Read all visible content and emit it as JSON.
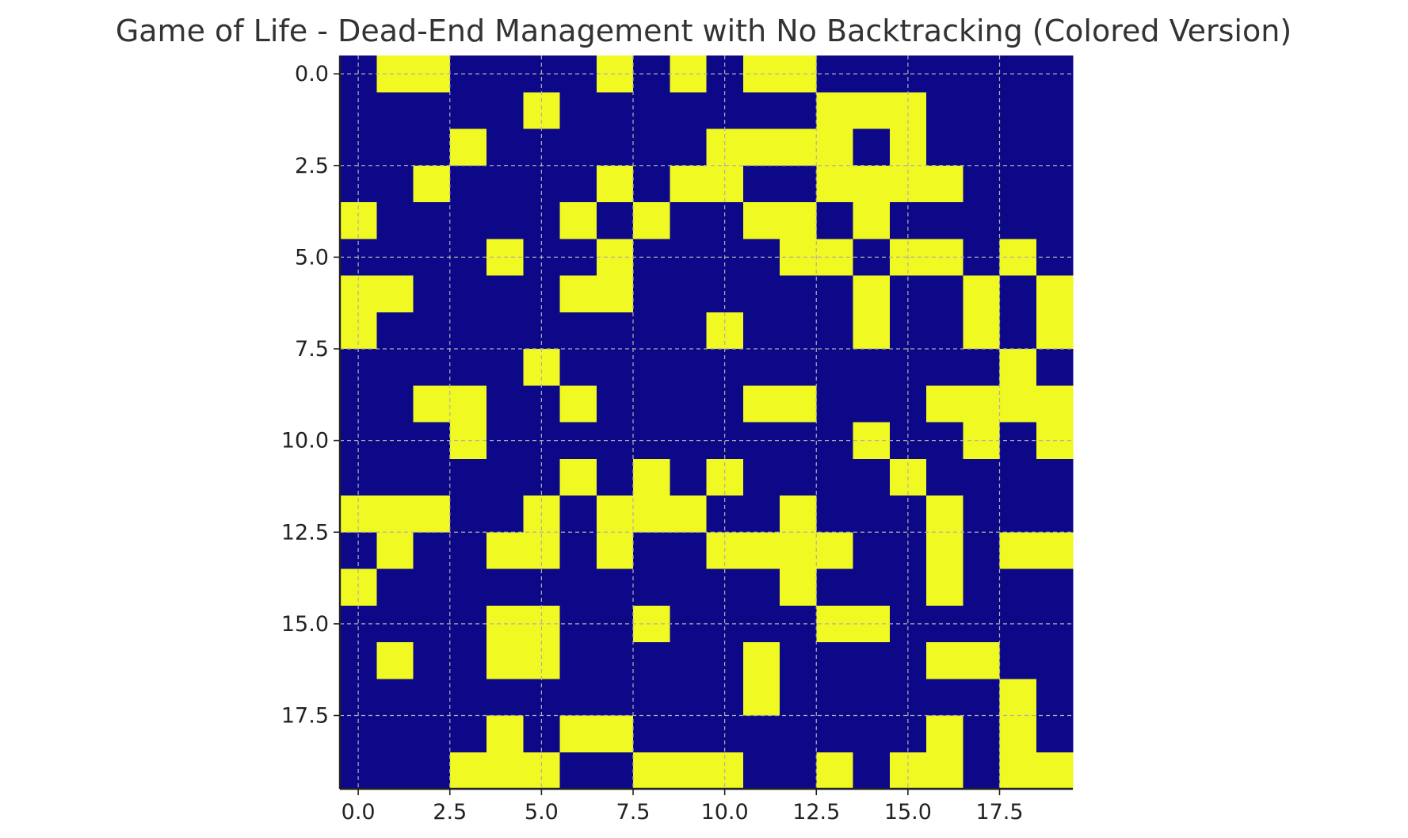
{
  "chart_data": {
    "type": "heatmap",
    "title": "Game of Life - Dead-End Management with No Backtracking (Colored Version)",
    "xlabel": "",
    "ylabel": "",
    "xlim": [
      -0.5,
      19.5
    ],
    "ylim": [
      19.5,
      -0.5
    ],
    "x_ticks": [
      0.0,
      2.5,
      5.0,
      7.5,
      10.0,
      12.5,
      15.0,
      17.5
    ],
    "x_tick_labels": [
      "0.0",
      "2.5",
      "5.0",
      "7.5",
      "10.0",
      "12.5",
      "15.0",
      "17.5"
    ],
    "y_ticks": [
      0.0,
      2.5,
      5.0,
      7.5,
      10.0,
      12.5,
      15.0,
      17.5
    ],
    "y_tick_labels": [
      "0.0",
      "2.5",
      "5.0",
      "7.5",
      "10.0",
      "12.5",
      "15.0",
      "17.5"
    ],
    "grid": true,
    "colors": {
      "dead": "#0d0887",
      "alive": "#f0f921"
    },
    "grid_values": [
      [
        0,
        1,
        1,
        0,
        0,
        0,
        0,
        1,
        0,
        1,
        0,
        1,
        1,
        0,
        0,
        0,
        0,
        0,
        0,
        0
      ],
      [
        0,
        0,
        0,
        0,
        0,
        1,
        0,
        0,
        0,
        0,
        0,
        0,
        0,
        1,
        1,
        1,
        0,
        0,
        0,
        0
      ],
      [
        0,
        0,
        0,
        1,
        0,
        0,
        0,
        0,
        0,
        0,
        1,
        1,
        1,
        1,
        0,
        1,
        0,
        0,
        0,
        0
      ],
      [
        0,
        0,
        1,
        0,
        0,
        0,
        0,
        1,
        0,
        1,
        1,
        0,
        0,
        1,
        1,
        1,
        1,
        0,
        0,
        0
      ],
      [
        1,
        0,
        0,
        0,
        0,
        0,
        1,
        0,
        1,
        0,
        0,
        1,
        1,
        0,
        1,
        0,
        0,
        0,
        0,
        0
      ],
      [
        0,
        0,
        0,
        0,
        1,
        0,
        0,
        1,
        0,
        0,
        0,
        0,
        1,
        1,
        0,
        1,
        1,
        0,
        1,
        0
      ],
      [
        1,
        1,
        0,
        0,
        0,
        0,
        1,
        1,
        0,
        0,
        0,
        0,
        0,
        0,
        1,
        0,
        0,
        1,
        0,
        1
      ],
      [
        1,
        0,
        0,
        0,
        0,
        0,
        0,
        0,
        0,
        0,
        1,
        0,
        0,
        0,
        1,
        0,
        0,
        1,
        0,
        1
      ],
      [
        0,
        0,
        0,
        0,
        0,
        1,
        0,
        0,
        0,
        0,
        0,
        0,
        0,
        0,
        0,
        0,
        0,
        0,
        1,
        0
      ],
      [
        0,
        0,
        1,
        1,
        0,
        0,
        1,
        0,
        0,
        0,
        0,
        1,
        1,
        0,
        0,
        0,
        1,
        1,
        1,
        1
      ],
      [
        0,
        0,
        0,
        1,
        0,
        0,
        0,
        0,
        0,
        0,
        0,
        0,
        0,
        0,
        1,
        0,
        0,
        1,
        0,
        1
      ],
      [
        0,
        0,
        0,
        0,
        0,
        0,
        1,
        0,
        1,
        0,
        1,
        0,
        0,
        0,
        0,
        1,
        0,
        0,
        0,
        0
      ],
      [
        1,
        1,
        1,
        0,
        0,
        1,
        0,
        1,
        1,
        1,
        0,
        0,
        1,
        0,
        0,
        0,
        1,
        0,
        0,
        0
      ],
      [
        0,
        1,
        0,
        0,
        1,
        1,
        0,
        1,
        0,
        0,
        1,
        1,
        1,
        1,
        0,
        0,
        1,
        0,
        1,
        1
      ],
      [
        1,
        0,
        0,
        0,
        0,
        0,
        0,
        0,
        0,
        0,
        0,
        0,
        1,
        0,
        0,
        0,
        1,
        0,
        0,
        0
      ],
      [
        0,
        0,
        0,
        0,
        1,
        1,
        0,
        0,
        1,
        0,
        0,
        0,
        0,
        1,
        1,
        0,
        0,
        0,
        0,
        0
      ],
      [
        0,
        1,
        0,
        0,
        1,
        1,
        0,
        0,
        0,
        0,
        0,
        1,
        0,
        0,
        0,
        0,
        1,
        1,
        0,
        0
      ],
      [
        0,
        0,
        0,
        0,
        0,
        0,
        0,
        0,
        0,
        0,
        0,
        1,
        0,
        0,
        0,
        0,
        0,
        0,
        1,
        0
      ],
      [
        0,
        0,
        0,
        0,
        1,
        0,
        1,
        1,
        0,
        0,
        0,
        0,
        0,
        0,
        0,
        0,
        1,
        0,
        1,
        0
      ],
      [
        0,
        0,
        0,
        1,
        1,
        1,
        0,
        0,
        1,
        1,
        1,
        0,
        0,
        1,
        0,
        1,
        1,
        0,
        1,
        1
      ]
    ]
  }
}
